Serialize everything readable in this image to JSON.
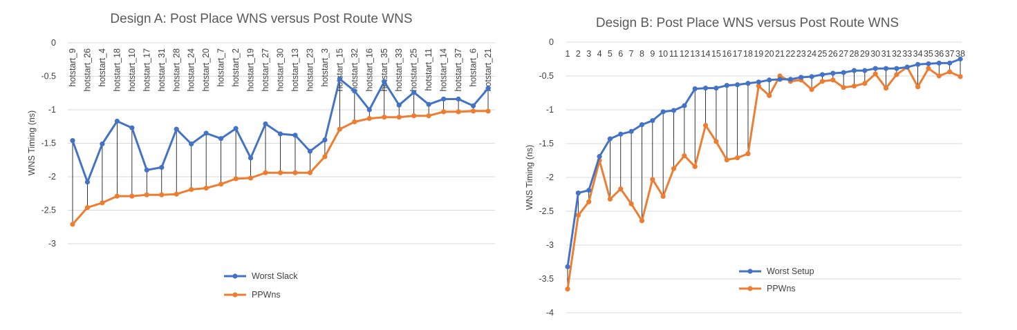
{
  "chart_data": [
    {
      "type": "line",
      "title": "Design A: Post Place WNS versus Post Route WNS",
      "ylabel": "WNS Timing (ns)",
      "xlabel": "",
      "ylim": [
        -3,
        0
      ],
      "yticks": [
        0,
        -0.5,
        -1,
        -1.5,
        -2,
        -2.5,
        -3
      ],
      "ytick_labels": [
        "0",
        "-0.5",
        "-1",
        "-1.5",
        "-2",
        "-2.5",
        "-3"
      ],
      "grid": true,
      "drop_lines": true,
      "legend_position": "bottom",
      "categories": [
        "hotstart_9",
        "hotstart_26",
        "hotstart_4",
        "hotstart_18",
        "hotstart_10",
        "hotstart_17",
        "hotstart_31",
        "hotstart_28",
        "hotstart_24",
        "hotstart_20",
        "hotstart_7",
        "hotstart_2",
        "hotstart_19",
        "hotstart_27",
        "hotstart_30",
        "hotstart_13",
        "hotstart_23",
        "hotstart_3",
        "hotstart_15",
        "hotstart_32",
        "hotstart_16",
        "hotstart_35",
        "hotstart_33",
        "hotstart_25",
        "hotstart_11",
        "hotstart_14",
        "hotstart_37",
        "hotstart_6",
        "hotstart_21"
      ],
      "series": [
        {
          "name": "Worst Slack",
          "color": "#4472c4",
          "values": [
            -1.46,
            -2.08,
            -1.51,
            -1.17,
            -1.27,
            -1.9,
            -1.86,
            -1.29,
            -1.51,
            -1.35,
            -1.43,
            -1.28,
            -1.72,
            -1.21,
            -1.36,
            -1.38,
            -1.62,
            -1.45,
            -0.54,
            -0.72,
            -1.0,
            -0.58,
            -0.93,
            -0.74,
            -0.92,
            -0.84,
            -0.84,
            -0.94,
            -0.68
          ]
        },
        {
          "name": "PPWns",
          "color": "#ed7d31",
          "values": [
            -2.71,
            -2.46,
            -2.39,
            -2.29,
            -2.29,
            -2.27,
            -2.27,
            -2.26,
            -2.19,
            -2.17,
            -2.11,
            -2.03,
            -2.02,
            -1.94,
            -1.94,
            -1.94,
            -1.94,
            -1.7,
            -1.29,
            -1.18,
            -1.13,
            -1.11,
            -1.11,
            -1.09,
            -1.09,
            -1.03,
            -1.03,
            -1.02,
            -1.02
          ]
        }
      ]
    },
    {
      "type": "line",
      "title": "Design B: Post Place WNS versus Post Route WNS",
      "ylabel": "WNS Timing (ns)",
      "xlabel": "",
      "ylim": [
        -4,
        0
      ],
      "yticks": [
        0,
        -0.5,
        -1,
        -1.5,
        -2,
        -2.5,
        -3,
        -3.5,
        -4
      ],
      "ytick_labels": [
        "0",
        "-0.5",
        "-1",
        "-1.5",
        "-2",
        "-2.5",
        "-3",
        "-3.5",
        "-4"
      ],
      "grid": true,
      "drop_lines": true,
      "legend_position": "bottom",
      "categories": [
        "1",
        "2",
        "3",
        "4",
        "5",
        "6",
        "7",
        "8",
        "9",
        "10",
        "11",
        "12",
        "13",
        "14",
        "15",
        "16",
        "17",
        "18",
        "19",
        "20",
        "21",
        "22",
        "23",
        "24",
        "25",
        "26",
        "27",
        "28",
        "29",
        "30",
        "31",
        "32",
        "33",
        "34",
        "35",
        "36",
        "37",
        "38"
      ],
      "series": [
        {
          "name": "Worst Setup",
          "color": "#4472c4",
          "values": [
            -3.32,
            -2.23,
            -2.19,
            -1.69,
            -1.43,
            -1.36,
            -1.32,
            -1.22,
            -1.16,
            -1.03,
            -1.01,
            -0.94,
            -0.69,
            -0.68,
            -0.68,
            -0.64,
            -0.63,
            -0.61,
            -0.59,
            -0.56,
            -0.55,
            -0.55,
            -0.52,
            -0.51,
            -0.48,
            -0.46,
            -0.45,
            -0.42,
            -0.42,
            -0.39,
            -0.39,
            -0.39,
            -0.37,
            -0.33,
            -0.32,
            -0.31,
            -0.31,
            -0.25
          ]
        },
        {
          "name": "PPWns",
          "color": "#ed7d31",
          "values": [
            -3.65,
            -2.56,
            -2.36,
            -1.75,
            -2.32,
            -2.17,
            -2.39,
            -2.64,
            -2.03,
            -2.28,
            -1.87,
            -1.68,
            -1.84,
            -1.23,
            -1.47,
            -1.74,
            -1.71,
            -1.65,
            -0.65,
            -0.79,
            -0.5,
            -0.58,
            -0.56,
            -0.7,
            -0.58,
            -0.56,
            -0.67,
            -0.65,
            -0.61,
            -0.47,
            -0.68,
            -0.48,
            -0.37,
            -0.66,
            -0.39,
            -0.5,
            -0.44,
            -0.51
          ]
        }
      ]
    }
  ]
}
